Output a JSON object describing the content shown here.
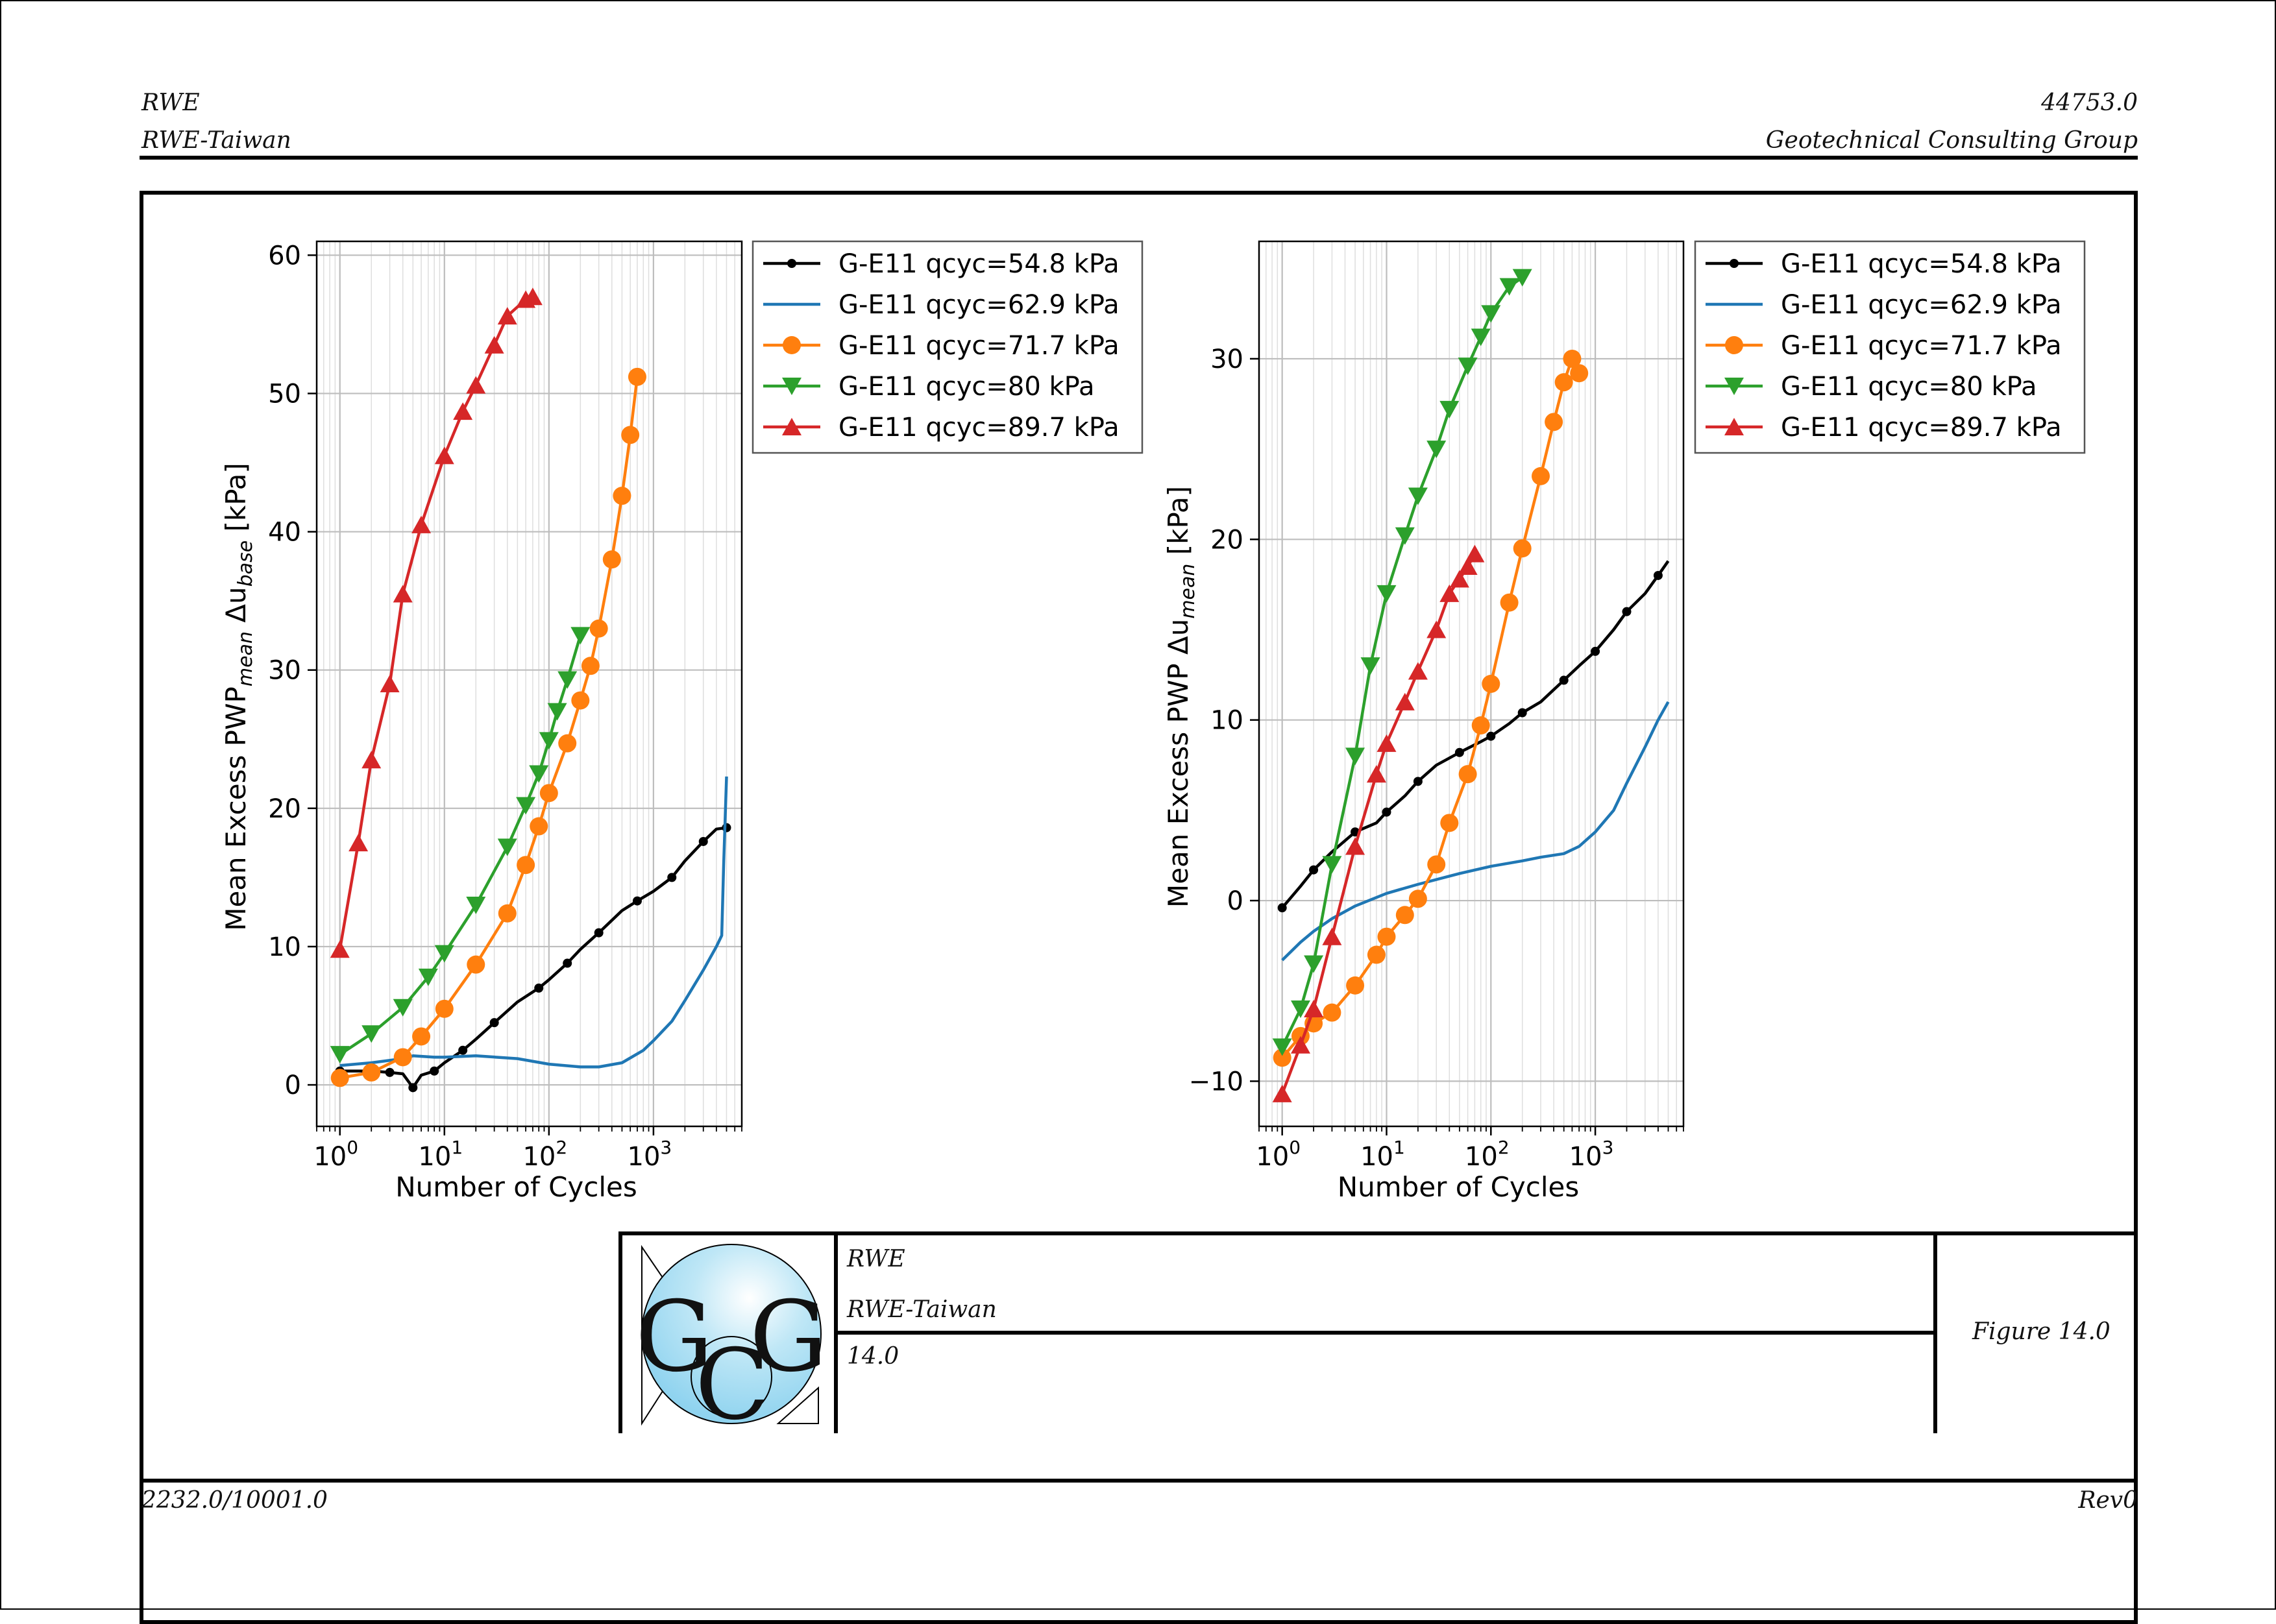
{
  "header": {
    "left_top": "RWE",
    "left_bottom": "RWE-Taiwan",
    "right_top": "44753.0",
    "right_bottom": "Geotechnical Consulting Group"
  },
  "footer": {
    "left": "2232.0/10001.0",
    "right": "Rev0"
  },
  "title_block": {
    "logo_letters": "GCG",
    "line1": "RWE",
    "line2": "RWE-Taiwan",
    "line3": "14.0",
    "figure": "Figure 14.0"
  },
  "colors": {
    "black": "#000000",
    "blue": "#1f77b4",
    "orange": "#ff7f0e",
    "green": "#2ca02c",
    "red": "#d62728",
    "logo": "#a9def2"
  },
  "chart_data": [
    {
      "type": "line",
      "xscale": "log",
      "xlabel": "Number of Cycles",
      "ylabel": "Mean Excess PWP",
      "ylabel_sub": "mean",
      "ylabel_delta": "Δu",
      "ylabel_delta_sub": "base",
      "ylabel_unit": "[kPa]",
      "xlim": [
        0.6,
        7000
      ],
      "ylim": [
        -3,
        61
      ],
      "yticks": [
        0,
        10,
        20,
        30,
        40,
        50,
        60
      ],
      "xticks": [
        "10^0",
        "10^1",
        "10^2",
        "10^3"
      ],
      "grid": true,
      "legend_position": "outside-right-top",
      "series": [
        {
          "name": "G-E11 qcyc=54.8 kPa",
          "color": "#000000",
          "marker": "dot",
          "x": [
            1,
            2,
            3,
            4,
            5,
            6,
            8,
            10,
            15,
            20,
            30,
            50,
            80,
            100,
            150,
            200,
            300,
            500,
            700,
            1000,
            1500,
            2000,
            3000,
            4000,
            5000
          ],
          "y": [
            1.0,
            1.0,
            0.9,
            0.8,
            -0.2,
            0.7,
            1.0,
            1.6,
            2.5,
            3.3,
            4.5,
            6.0,
            7.0,
            7.6,
            8.8,
            9.8,
            11.0,
            12.6,
            13.3,
            14.0,
            15.0,
            16.2,
            17.6,
            18.5,
            18.6
          ]
        },
        {
          "name": "G-E11 qcyc=62.9 kPa",
          "color": "#1f77b4",
          "marker": "none",
          "x": [
            1,
            2,
            4,
            5,
            8,
            10,
            20,
            50,
            100,
            200,
            300,
            500,
            800,
            1000,
            1500,
            2000,
            3000,
            4000,
            4500,
            4700,
            5000
          ],
          "y": [
            1.4,
            1.6,
            1.9,
            2.1,
            2.0,
            2.0,
            2.1,
            1.9,
            1.5,
            1.3,
            1.3,
            1.6,
            2.5,
            3.2,
            4.6,
            6.1,
            8.3,
            10.0,
            10.8,
            16.0,
            22.3
          ]
        },
        {
          "name": "G-E11 qcyc=71.7 kPa",
          "color": "#ff7f0e",
          "marker": "circle",
          "x": [
            1,
            2,
            4,
            6,
            10,
            20,
            40,
            60,
            80,
            100,
            150,
            200,
            250,
            300,
            400,
            500,
            600,
            700
          ],
          "y": [
            0.5,
            0.9,
            2.0,
            3.5,
            5.5,
            8.7,
            12.4,
            15.9,
            18.7,
            21.1,
            24.7,
            27.8,
            30.3,
            33.0,
            38.0,
            42.6,
            47.0,
            51.2
          ]
        },
        {
          "name": "G-E11 qcyc=80 kPa",
          "color": "#2ca02c",
          "marker": "triangle-down",
          "x": [
            1,
            2,
            4,
            7,
            10,
            20,
            40,
            60,
            80,
            100,
            120,
            150,
            200
          ],
          "y": [
            2.2,
            3.7,
            5.6,
            7.8,
            9.5,
            13.0,
            17.2,
            20.2,
            22.5,
            24.9,
            27.0,
            29.3,
            32.5
          ]
        },
        {
          "name": "G-E11 qcyc=89.7 kPa",
          "color": "#d62728",
          "marker": "triangle-up",
          "x": [
            1,
            1.5,
            2,
            3,
            4,
            6,
            10,
            15,
            20,
            30,
            40,
            60,
            70
          ],
          "y": [
            9.8,
            17.5,
            23.5,
            29.0,
            35.5,
            40.5,
            45.5,
            48.7,
            50.6,
            53.5,
            55.6,
            56.8,
            57.0
          ]
        }
      ]
    },
    {
      "type": "line",
      "xscale": "log",
      "xlabel": "Number of Cycles",
      "ylabel": "Mean Excess PWP",
      "ylabel_delta": "Δu",
      "ylabel_delta_sub": "mean",
      "ylabel_unit": "[kPa]",
      "xlim": [
        0.6,
        7000
      ],
      "ylim": [
        -12.5,
        36.5
      ],
      "yticks": [
        -10,
        0,
        10,
        20,
        30
      ],
      "xticks": [
        "10^0",
        "10^1",
        "10^2",
        "10^3"
      ],
      "grid": true,
      "legend_position": "outside-right-top",
      "series": [
        {
          "name": "G-E11 qcyc=54.8 kPa",
          "color": "#000000",
          "marker": "dot",
          "x": [
            1,
            1.5,
            2,
            3,
            5,
            8,
            10,
            15,
            20,
            30,
            50,
            80,
            100,
            150,
            200,
            300,
            500,
            700,
            1000,
            1500,
            2000,
            3000,
            4000,
            5000
          ],
          "y": [
            -0.4,
            0.8,
            1.7,
            2.7,
            3.8,
            4.3,
            4.9,
            5.8,
            6.6,
            7.5,
            8.2,
            8.8,
            9.1,
            9.8,
            10.4,
            11.0,
            12.2,
            13.0,
            13.8,
            15.0,
            16.0,
            17.0,
            18.0,
            18.8
          ]
        },
        {
          "name": "G-E11 qcyc=62.9 kPa",
          "color": "#1f77b4",
          "marker": "none",
          "x": [
            1,
            1.5,
            2,
            3,
            5,
            10,
            20,
            50,
            100,
            200,
            300,
            500,
            700,
            1000,
            1500,
            2000,
            3000,
            4000,
            5000
          ],
          "y": [
            -3.3,
            -2.3,
            -1.7,
            -1.0,
            -0.3,
            0.4,
            0.9,
            1.5,
            1.9,
            2.2,
            2.4,
            2.6,
            3.0,
            3.8,
            5.0,
            6.5,
            8.5,
            10.0,
            11.0
          ]
        },
        {
          "name": "G-E11 qcyc=71.7 kPa",
          "color": "#ff7f0e",
          "marker": "circle",
          "x": [
            1,
            1.5,
            2,
            3,
            5,
            8,
            10,
            15,
            20,
            30,
            40,
            60,
            80,
            100,
            150,
            200,
            300,
            400,
            500,
            600,
            700
          ],
          "y": [
            -8.7,
            -7.5,
            -6.8,
            -6.2,
            -4.7,
            -3.0,
            -2.0,
            -0.8,
            0.1,
            2.0,
            4.3,
            7.0,
            9.7,
            12.0,
            16.5,
            19.5,
            23.5,
            26.5,
            28.7,
            30.0,
            29.2
          ]
        },
        {
          "name": "G-E11 qcyc=80 kPa",
          "color": "#2ca02c",
          "marker": "triangle-down",
          "x": [
            1,
            1.5,
            2,
            3,
            5,
            7,
            10,
            15,
            20,
            30,
            40,
            60,
            80,
            100,
            150,
            200
          ],
          "y": [
            -8.1,
            -6.0,
            -3.5,
            2.0,
            8.0,
            13.0,
            17.0,
            20.2,
            22.4,
            25.0,
            27.2,
            29.6,
            31.2,
            32.5,
            34.0,
            34.5
          ]
        },
        {
          "name": "G-E11 qcyc=89.7 kPa",
          "color": "#d62728",
          "marker": "triangle-up",
          "x": [
            1,
            1.5,
            2,
            3,
            5,
            8,
            10,
            15,
            20,
            30,
            40,
            50,
            60,
            70
          ],
          "y": [
            -10.7,
            -8.0,
            -6.0,
            -2.0,
            3.0,
            7.0,
            8.7,
            11.0,
            12.7,
            15.0,
            17.0,
            17.8,
            18.5,
            19.2
          ]
        }
      ]
    }
  ]
}
